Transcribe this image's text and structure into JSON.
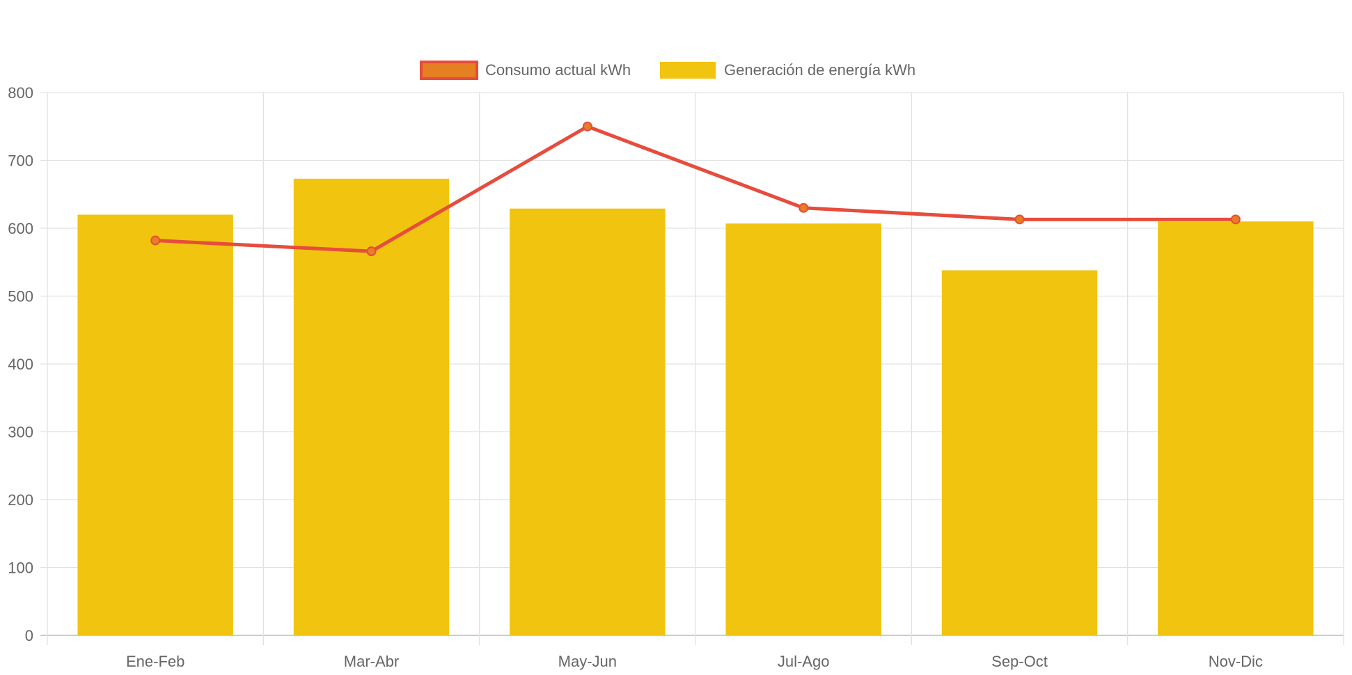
{
  "chart_data": {
    "type": "bar",
    "title": "",
    "xlabel": "",
    "ylabel": "",
    "categories": [
      "Ene-Feb",
      "Mar-Abr",
      "May-Jun",
      "Jul-Ago",
      "Sep-Oct",
      "Nov-Dic"
    ],
    "ylim": [
      0,
      800
    ],
    "yticks": [
      "0",
      "100",
      "200",
      "300",
      "400",
      "500",
      "600",
      "700",
      "800"
    ],
    "grid": true,
    "legend_position": "top",
    "series": [
      {
        "name": "Consumo actual kWh",
        "type": "line",
        "color": "#e74c3c",
        "point_color": "#e67e22",
        "values": [
          582,
          566,
          750,
          630,
          613,
          613
        ]
      },
      {
        "name": "Generación de energía kWh",
        "type": "bar",
        "color": "#f1c40f",
        "values": [
          620,
          673,
          629,
          607,
          538,
          610
        ]
      }
    ]
  }
}
